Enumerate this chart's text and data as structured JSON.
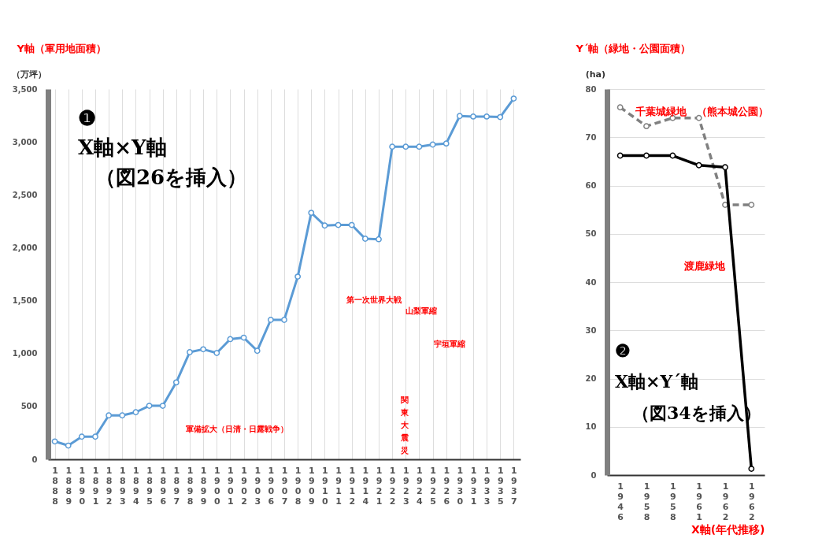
{
  "chart_data": [
    {
      "type": "line",
      "ylabel": "Y軸（軍用地面積）",
      "categories": [
        "1888",
        "1889",
        "1890",
        "1891",
        "1892",
        "1893",
        "1894",
        "1895",
        "1896",
        "1897",
        "1898",
        "1899",
        "1900",
        "1901",
        "1902",
        "1903",
        "1906",
        "1907",
        "1908",
        "1909",
        "1910",
        "1911",
        "1912",
        "1914",
        "1921",
        "1922",
        "1923",
        "1924",
        "1925",
        "1926",
        "1930",
        "1931",
        "1933",
        "1935",
        "1937"
      ],
      "values": [
        169,
        130,
        214,
        214,
        415,
        415,
        445,
        506,
        506,
        727,
        1013,
        1040,
        1005,
        1136,
        1150,
        1026,
        1318,
        1318,
        1727,
        2330,
        2210,
        2215,
        2215,
        2085,
        2080,
        2955,
        2955,
        2955,
        2975,
        2985,
        3245,
        3240,
        3240,
        3235,
        3410
      ],
      "color": "#5b9bd5",
      "marker": "circle",
      "line_style": "solid",
      "ylim": [
        0,
        3500
      ],
      "yticks": [
        0,
        500,
        {
          "value": 1000,
          "label": "1,000"
        },
        {
          "value": 1500,
          "label": "1,500"
        },
        {
          "value": 2000,
          "label": "2,000"
        },
        {
          "value": 2500,
          "label": "2,500"
        },
        {
          "value": 3000,
          "label": "3,000"
        },
        {
          "value": 3500,
          "label": "3,500"
        }
      ],
      "grid": "x",
      "annotations": [
        "（万坪）",
        "❶",
        "X軸×Y軸",
        "（図26を挿入）",
        "軍備拡大（日清・日露戦争）",
        "第一次世界大戦",
        "山梨軍縮",
        "宇垣軍縮",
        "関東大震災"
      ]
    },
    {
      "type": "line",
      "ylabel": "Y´軸（緑地・公園面積）",
      "xlabel": "X軸(年代推移)",
      "categories": [
        "1946",
        "1958",
        "1958",
        "1961",
        "1962",
        "1962"
      ],
      "series": [
        {
          "name": "千葉城緑地　（熊本城公園）",
          "color": "#808080",
          "line_style": "dashed",
          "values": [
            76.2,
            72.3,
            74.0,
            74.0,
            56.0,
            56.0
          ]
        },
        {
          "name": "渡鹿緑地",
          "color": "#000000",
          "line_style": "solid",
          "values": [
            66.2,
            66.2,
            66.2,
            64.2,
            63.8,
            1.3
          ]
        }
      ],
      "marker": "circle",
      "ylim": [
        0,
        80
      ],
      "yticks": [
        0,
        10,
        20,
        30,
        40,
        50,
        60,
        70,
        80
      ],
      "grid": "y",
      "annotations": [
        "(ha)",
        "❷",
        "X軸×Y´軸",
        "（図34を挿入）"
      ]
    }
  ]
}
